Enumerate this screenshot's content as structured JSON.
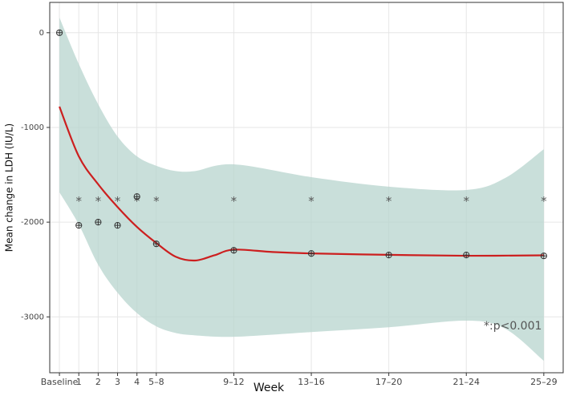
{
  "chart_data": {
    "type": "scatter-smooth",
    "x_label": "Week",
    "y_label": "Mean change in LDH (IU/L)",
    "xlim": [
      -0.5,
      26
    ],
    "ylim": [
      -3590,
      320
    ],
    "xticks": [
      {
        "value": 0,
        "label": "Baseline"
      },
      1,
      2,
      3,
      4,
      {
        "value": 5,
        "label": "5–8"
      },
      {
        "value": 9,
        "label": "9–12"
      },
      {
        "value": 13,
        "label": "13–16"
      },
      {
        "value": 17,
        "label": "17–20"
      },
      {
        "value": 21,
        "label": "21–24"
      },
      {
        "value": 25,
        "label": "25–29"
      }
    ],
    "yticks": [
      0,
      -1000,
      -2000,
      -3000
    ],
    "grid": true,
    "points": {
      "color": "#333333",
      "x": [
        0,
        1,
        2,
        3,
        4,
        5,
        9,
        13,
        17,
        21,
        25
      ],
      "values": [
        0,
        -2034,
        -2000,
        -2034,
        -1730,
        -2229,
        -2297,
        -2331,
        -2347,
        -2347,
        -2356
      ]
    },
    "fit": {
      "color": "#cc1f1f",
      "x": [
        0,
        1,
        2,
        3,
        4,
        5,
        6,
        7,
        8,
        9,
        11,
        13,
        17,
        21,
        25
      ],
      "values": [
        -780,
        -1305,
        -1600,
        -1840,
        -2050,
        -2220,
        -2365,
        -2405,
        -2350,
        -2290,
        -2315,
        -2330,
        -2345,
        -2355,
        -2350
      ]
    },
    "band": {
      "color": "#b7d4cd",
      "x": [
        0,
        1,
        2,
        3,
        4,
        5,
        6,
        7,
        9,
        13,
        17,
        21,
        23,
        25
      ],
      "upper": [
        160,
        -330,
        -755,
        -1095,
        -1305,
        -1405,
        -1460,
        -1460,
        -1390,
        -1525,
        -1625,
        -1660,
        -1535,
        -1230
      ],
      "lower": [
        -1685,
        -2025,
        -2450,
        -2745,
        -2960,
        -3100,
        -3170,
        -3195,
        -3210,
        -3160,
        -3110,
        -3040,
        -3125,
        -3465
      ]
    },
    "significance": {
      "text": "*",
      "y": -1750,
      "x": [
        1,
        2,
        3,
        4,
        5,
        9,
        13,
        17,
        21,
        25
      ]
    },
    "annotation": {
      "text": "*:p<0.001",
      "x": 23.4,
      "y": -3100
    }
  }
}
